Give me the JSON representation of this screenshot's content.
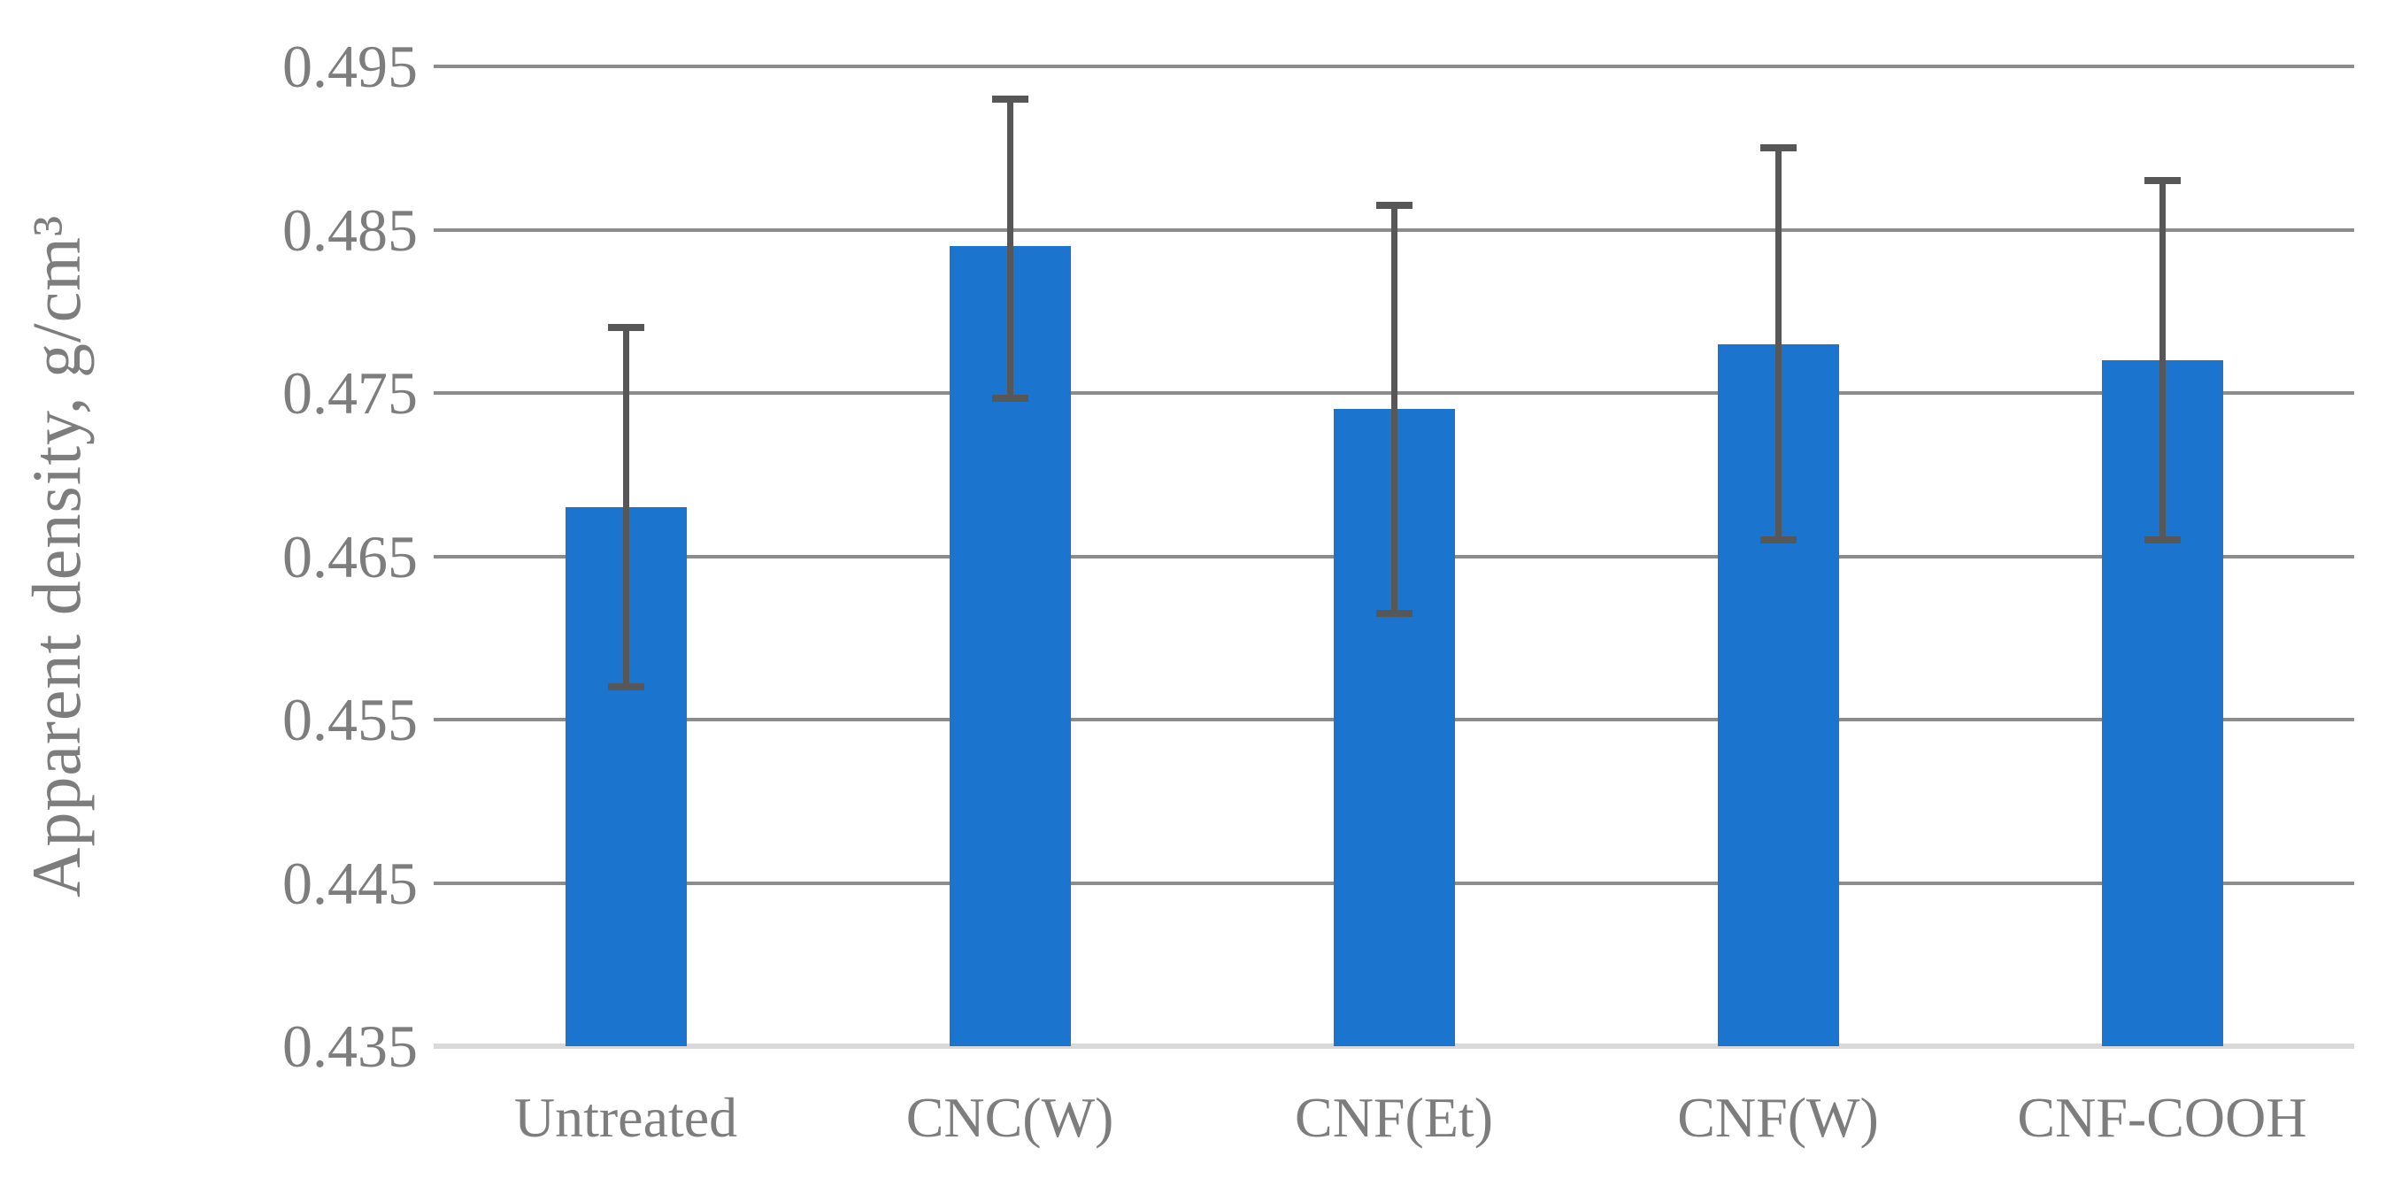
{
  "chart_data": {
    "type": "bar",
    "title": "",
    "xlabel": "",
    "ylabel": "Apparent density, g/cm³",
    "categories": [
      "Untreated",
      "CNC(W)",
      "CNF(Et)",
      "CNF(W)",
      "CNF-COOH"
    ],
    "values": [
      0.468,
      0.484,
      0.474,
      0.478,
      0.477
    ],
    "error_high": [
      0.479,
      0.493,
      0.4865,
      0.49,
      0.488
    ],
    "error_low": [
      0.457,
      0.4747,
      0.4615,
      0.466,
      0.466
    ],
    "ylim": [
      0.435,
      0.495
    ],
    "yticks": [
      "0.495",
      "0.485",
      "0.475",
      "0.465",
      "0.455",
      "0.445",
      "0.435"
    ],
    "grid": true,
    "legend": false,
    "colors": {
      "bar": "#1b74ce",
      "error_bar": "#575757",
      "gridline": "#8c8c8c",
      "axis_baseline": "#d9d9d9",
      "text": "#7d7d7d"
    }
  }
}
